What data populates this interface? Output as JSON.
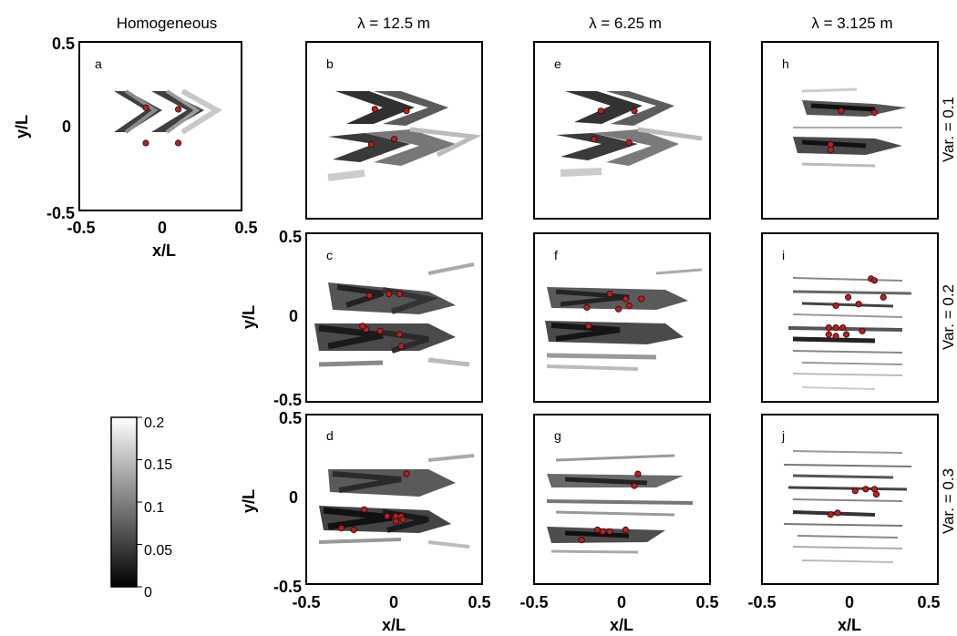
{
  "chart_data": {
    "type": "heatmap",
    "column_titles": [
      "Homogeneous",
      "λ = 12.5 m",
      "λ = 6.25 m",
      "λ = 3.125 m"
    ],
    "row_titles": [
      "Var. = 0.1",
      "Var. = 0.2",
      "Var. = 0.3"
    ],
    "xlabel": "x/L",
    "ylabel": "y/L",
    "xlim": [
      -0.5,
      0.5
    ],
    "ylim": [
      -0.5,
      0.5
    ],
    "xticks": [
      "-0.5",
      "0",
      "0.5"
    ],
    "yticks": [
      "0.5",
      "0",
      "-0.5"
    ],
    "colorbar": {
      "min": 0,
      "max": 0.2,
      "ticks": [
        "0.2",
        "0.15",
        "0.1",
        "0.05",
        "0"
      ]
    },
    "colors": {
      "marker": "#b22222",
      "low": "#000000",
      "high": "#ffffff"
    },
    "panels": [
      {
        "letter": "a",
        "column": 0,
        "row": 0,
        "markers": [
          [
            -0.09,
            0.11
          ],
          [
            0.11,
            0.1
          ],
          [
            -0.09,
            -0.1
          ],
          [
            0.11,
            -0.1
          ]
        ]
      },
      {
        "letter": "b",
        "column": 1,
        "row": 0,
        "markers": [
          [
            -0.11,
            0.12
          ],
          [
            0.07,
            0.11
          ],
          [
            -0.13,
            -0.08
          ],
          [
            0.0,
            -0.05
          ]
        ]
      },
      {
        "letter": "c",
        "column": 1,
        "row": 1,
        "markers": [
          [
            -0.14,
            0.13
          ],
          [
            -0.03,
            0.14
          ],
          [
            0.03,
            0.14
          ],
          [
            -0.16,
            -0.07
          ],
          [
            -0.08,
            -0.08
          ],
          [
            0.03,
            -0.1
          ],
          [
            0.04,
            -0.17
          ],
          [
            -0.18,
            -0.05
          ]
        ]
      },
      {
        "letter": "d",
        "column": 1,
        "row": 2,
        "markers": [
          [
            0.07,
            0.15
          ],
          [
            -0.17,
            -0.06
          ],
          [
            -0.04,
            -0.1
          ],
          [
            0.01,
            -0.1
          ],
          [
            0.04,
            -0.1
          ],
          [
            0.01,
            -0.13
          ],
          [
            0.05,
            -0.12
          ],
          [
            -0.23,
            -0.18
          ],
          [
            -0.3,
            -0.17
          ]
        ]
      },
      {
        "letter": "e",
        "column": 2,
        "row": 0,
        "markers": [
          [
            -0.12,
            0.11
          ],
          [
            0.07,
            0.11
          ],
          [
            -0.16,
            -0.05
          ],
          [
            0.04,
            -0.07
          ]
        ]
      },
      {
        "letter": "f",
        "column": 2,
        "row": 1,
        "markers": [
          [
            -0.07,
            0.14
          ],
          [
            0.02,
            0.11
          ],
          [
            0.11,
            0.11
          ],
          [
            -0.02,
            0.05
          ],
          [
            0.04,
            0.07
          ],
          [
            -0.2,
            0.06
          ],
          [
            -0.19,
            -0.05
          ]
        ]
      },
      {
        "letter": "g",
        "column": 2,
        "row": 2,
        "markers": [
          [
            0.09,
            0.15
          ],
          [
            0.07,
            0.08
          ],
          [
            -0.14,
            -0.18
          ],
          [
            -0.11,
            -0.19
          ],
          [
            -0.07,
            -0.19
          ],
          [
            0.02,
            -0.18
          ],
          [
            -0.23,
            -0.24
          ]
        ]
      },
      {
        "letter": "h",
        "column": 3,
        "row": 0,
        "markers": [
          [
            -0.05,
            0.11
          ],
          [
            0.14,
            0.1
          ],
          [
            -0.11,
            -0.08
          ],
          [
            -0.11,
            -0.11
          ]
        ]
      },
      {
        "letter": "i",
        "column": 3,
        "row": 1,
        "markers": [
          [
            0.12,
            0.23
          ],
          [
            0.14,
            0.22
          ],
          [
            -0.01,
            0.12
          ],
          [
            0.19,
            0.12
          ],
          [
            0.05,
            0.08
          ],
          [
            -0.08,
            0.07
          ],
          [
            -0.12,
            -0.06
          ],
          [
            -0.08,
            -0.06
          ],
          [
            -0.04,
            -0.06
          ],
          [
            -0.12,
            -0.1
          ],
          [
            -0.08,
            -0.11
          ],
          [
            -0.02,
            -0.1
          ],
          [
            0.07,
            -0.08
          ]
        ]
      },
      {
        "letter": "j",
        "column": 3,
        "row": 2,
        "markers": [
          [
            0.03,
            0.05
          ],
          [
            0.09,
            0.06
          ],
          [
            0.14,
            0.06
          ],
          [
            0.15,
            0.03
          ],
          [
            -0.07,
            -0.08
          ],
          [
            -0.11,
            -0.09
          ]
        ]
      }
    ]
  }
}
